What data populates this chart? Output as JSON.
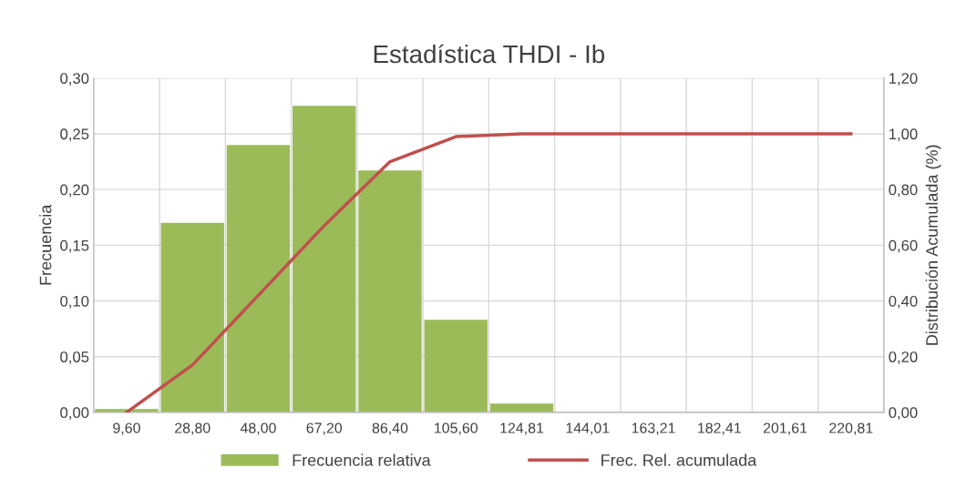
{
  "chart_data": {
    "type": "bar",
    "title": "Estadística THDI - Ib",
    "ylabel": "Frecuencia",
    "y2label": "Distribución Acumulada (%)",
    "categories": [
      "9,60",
      "28,80",
      "48,00",
      "67,20",
      "86,40",
      "105,60",
      "124,81",
      "144,01",
      "163,21",
      "182,41",
      "201,61",
      "220,81"
    ],
    "series": [
      {
        "name": "Frecuencia relativa",
        "color": "#9bbb59",
        "values": [
          0.003,
          0.17,
          0.24,
          0.275,
          0.217,
          0.083,
          0.008,
          0,
          0,
          0,
          0,
          0
        ]
      },
      {
        "name": "Frec. Rel. acumulada",
        "type": "line",
        "axis": "y2",
        "color": "#c0504d",
        "values": [
          0.0,
          0.17,
          0.42,
          0.67,
          0.9,
          0.99,
          1.0,
          1.0,
          1.0,
          1.0,
          1.0,
          1.0
        ]
      }
    ],
    "ylim": [
      0,
      0.3
    ],
    "yticks": [
      {
        "value": 0,
        "label": "0,00"
      },
      {
        "value": 0.05,
        "label": "0,05"
      },
      {
        "value": 0.1,
        "label": "0,10"
      },
      {
        "value": 0.15,
        "label": "0,15"
      },
      {
        "value": 0.2,
        "label": "0,20"
      },
      {
        "value": 0.25,
        "label": "0,25"
      },
      {
        "value": 0.3,
        "label": "0,30"
      }
    ],
    "y2lim": [
      0,
      1.2
    ],
    "y2ticks": [
      {
        "value": 0,
        "label": "0,00"
      },
      {
        "value": 0.2,
        "label": "0,20"
      },
      {
        "value": 0.4,
        "label": "0,40"
      },
      {
        "value": 0.6,
        "label": "0,60"
      },
      {
        "value": 0.8,
        "label": "0,80"
      },
      {
        "value": 1.0,
        "label": "1,00"
      },
      {
        "value": 1.2,
        "label": "1,20"
      }
    ],
    "grid": true,
    "legend": "bottom",
    "marker": "none",
    "line_style": "solid"
  }
}
